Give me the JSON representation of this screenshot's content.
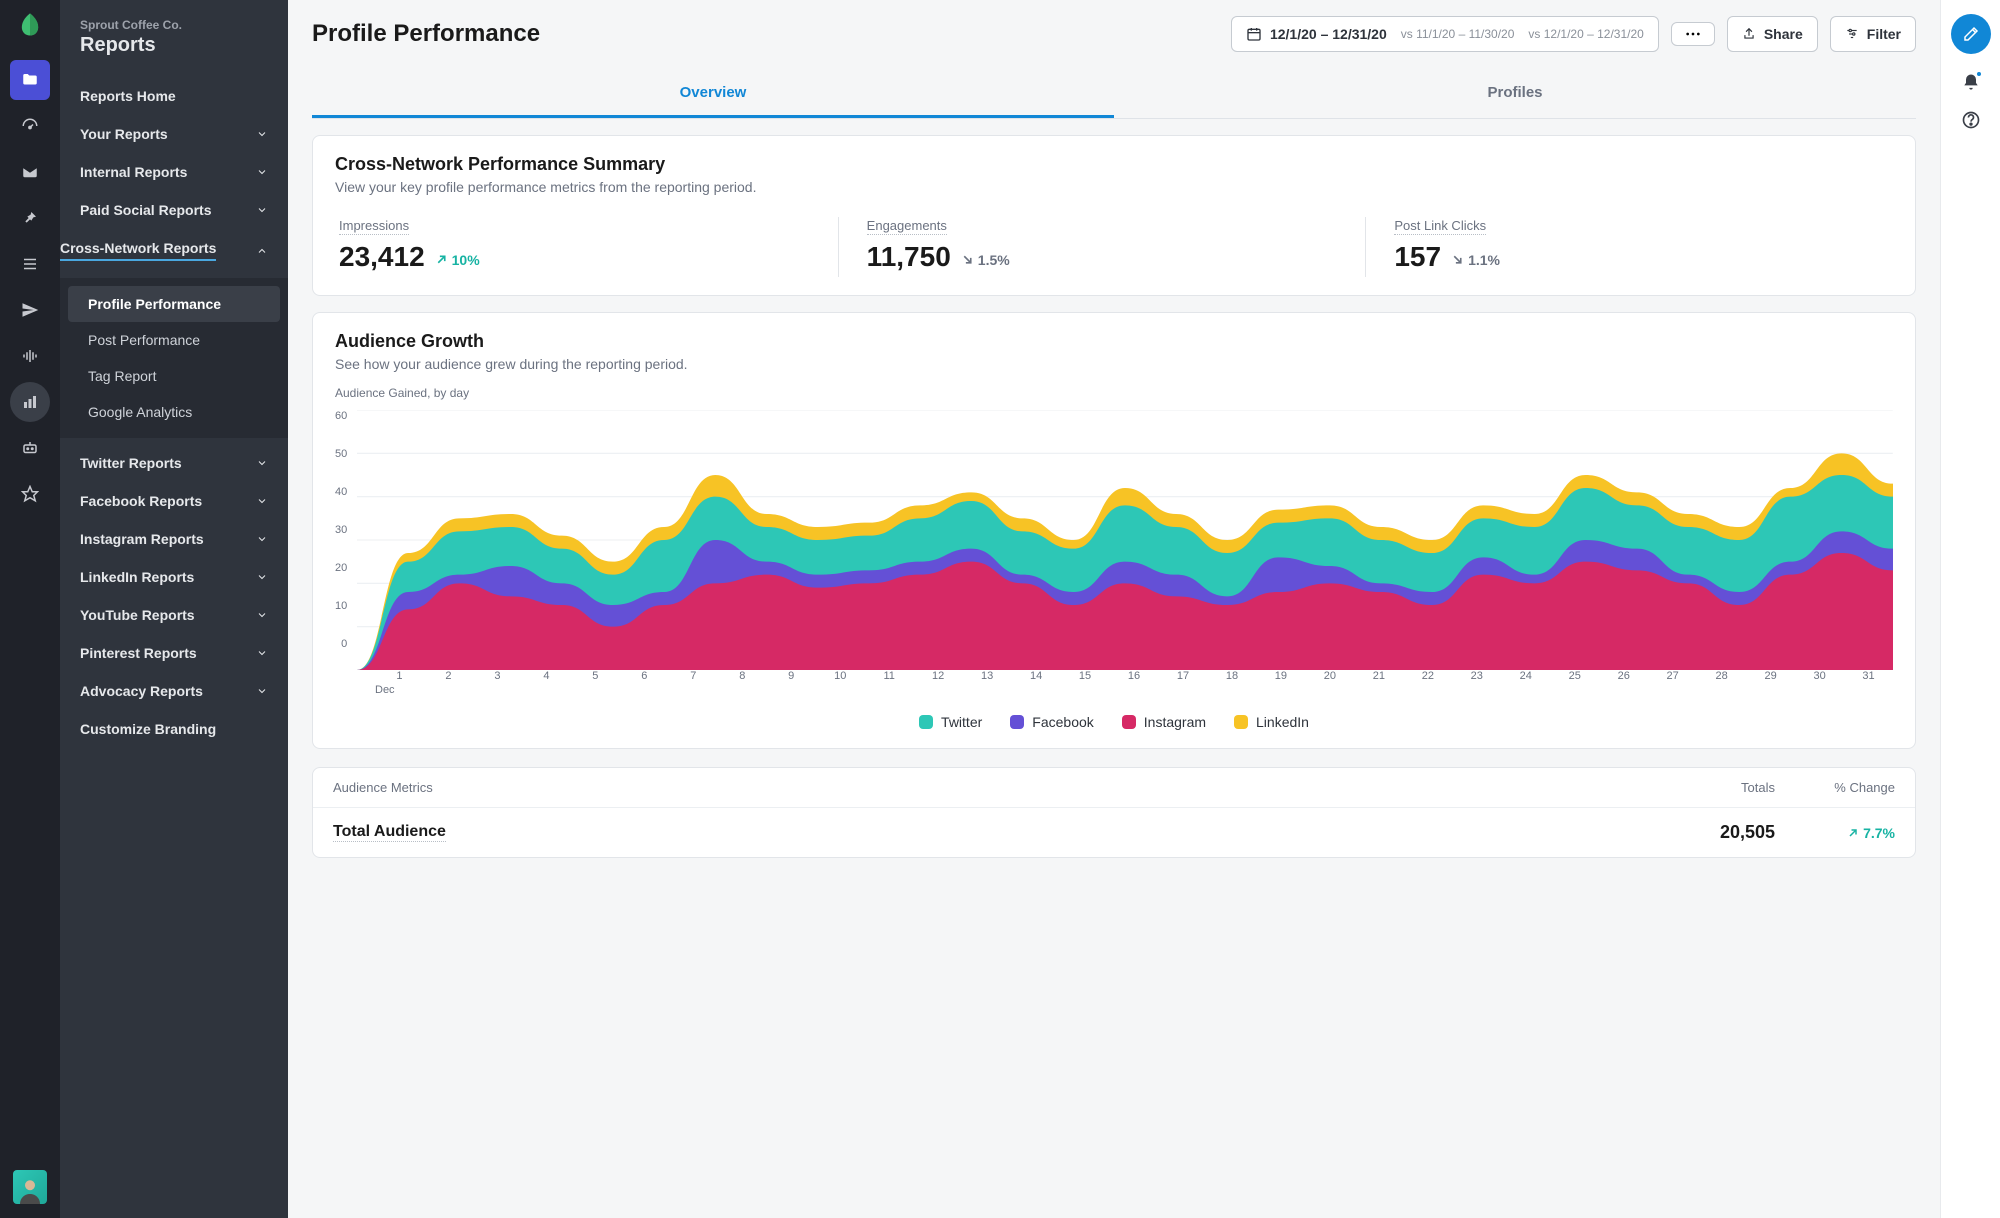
{
  "company": "Sprout Coffee Co.",
  "section": "Reports",
  "page_title": "Profile Performance",
  "date_range": {
    "main": "12/1/20 – 12/31/20",
    "vs1": "vs 11/1/20 – 11/30/20",
    "vs2": "vs 12/1/20 – 12/31/20"
  },
  "buttons": {
    "share": "Share",
    "filter": "Filter"
  },
  "tabs": {
    "overview": "Overview",
    "profiles": "Profiles"
  },
  "sidebar": {
    "items": [
      "Reports Home",
      "Your Reports",
      "Internal Reports",
      "Paid Social Reports",
      "Cross-Network Reports"
    ],
    "sub": [
      "Profile Performance",
      "Post Performance",
      "Tag Report",
      "Google Analytics"
    ],
    "more": [
      "Twitter Reports",
      "Facebook Reports",
      "Instagram Reports",
      "LinkedIn Reports",
      "YouTube Reports",
      "Pinterest Reports",
      "Advocacy Reports",
      "Customize Branding"
    ]
  },
  "summary": {
    "title": "Cross-Network Performance Summary",
    "sub": "View your key profile performance metrics from the reporting period.",
    "kpis": [
      {
        "label": "Impressions",
        "value": "23,412",
        "delta": "10%",
        "dir": "up"
      },
      {
        "label": "Engagements",
        "value": "11,750",
        "delta": "1.5%",
        "dir": "down"
      },
      {
        "label": "Post Link Clicks",
        "value": "157",
        "delta": "1.1%",
        "dir": "down"
      }
    ]
  },
  "growth": {
    "title": "Audience Growth",
    "sub": "See how your audience grew during the reporting period.",
    "chart_title": "Audience Gained, by day",
    "ylim": [
      0,
      60
    ],
    "ytick_step": 10,
    "yticks": [
      "60",
      "50",
      "40",
      "30",
      "20",
      "10",
      "0"
    ],
    "month": "Dec",
    "days": [
      "1",
      "2",
      "3",
      "4",
      "5",
      "6",
      "7",
      "8",
      "9",
      "10",
      "11",
      "12",
      "13",
      "14",
      "15",
      "16",
      "17",
      "18",
      "19",
      "20",
      "21",
      "22",
      "23",
      "24",
      "25",
      "26",
      "27",
      "28",
      "29",
      "30",
      "31"
    ],
    "colors": {
      "twitter": "#2dc7b6",
      "facebook": "#6450d6",
      "instagram": "#d62965",
      "linkedin": "#f7c325",
      "grid": "#eceff2",
      "bg": "#ffffff"
    },
    "series": {
      "instagram": [
        0,
        14,
        20,
        17,
        15,
        10,
        15,
        20,
        22,
        19,
        20,
        22,
        25,
        20,
        15,
        20,
        17,
        15,
        18,
        20,
        18,
        15,
        22,
        20,
        25,
        23,
        20,
        15,
        22,
        27,
        23,
        20
      ],
      "facebook": [
        0,
        18,
        22,
        24,
        20,
        15,
        18,
        30,
        25,
        22,
        23,
        25,
        28,
        22,
        18,
        25,
        22,
        17,
        26,
        24,
        20,
        18,
        26,
        22,
        30,
        28,
        22,
        18,
        25,
        32,
        28,
        25
      ],
      "twitter": [
        0,
        25,
        32,
        33,
        28,
        22,
        30,
        40,
        33,
        30,
        31,
        35,
        39,
        32,
        28,
        38,
        33,
        27,
        34,
        35,
        30,
        27,
        35,
        33,
        42,
        38,
        33,
        30,
        40,
        45,
        40,
        35
      ],
      "linkedin": [
        0,
        27,
        35,
        36,
        31,
        25,
        33,
        45,
        36,
        33,
        34,
        38,
        41,
        35,
        30,
        42,
        36,
        30,
        37,
        38,
        33,
        30,
        38,
        36,
        45,
        41,
        36,
        33,
        42,
        50,
        43,
        38
      ]
    },
    "legend": [
      "Twitter",
      "Facebook",
      "Instagram",
      "LinkedIn"
    ]
  },
  "metrics": {
    "head": {
      "label": "Audience Metrics",
      "totals": "Totals",
      "change": "% Change"
    },
    "row": {
      "label": "Total Audience",
      "total": "20,505",
      "change": "7.7%"
    }
  }
}
